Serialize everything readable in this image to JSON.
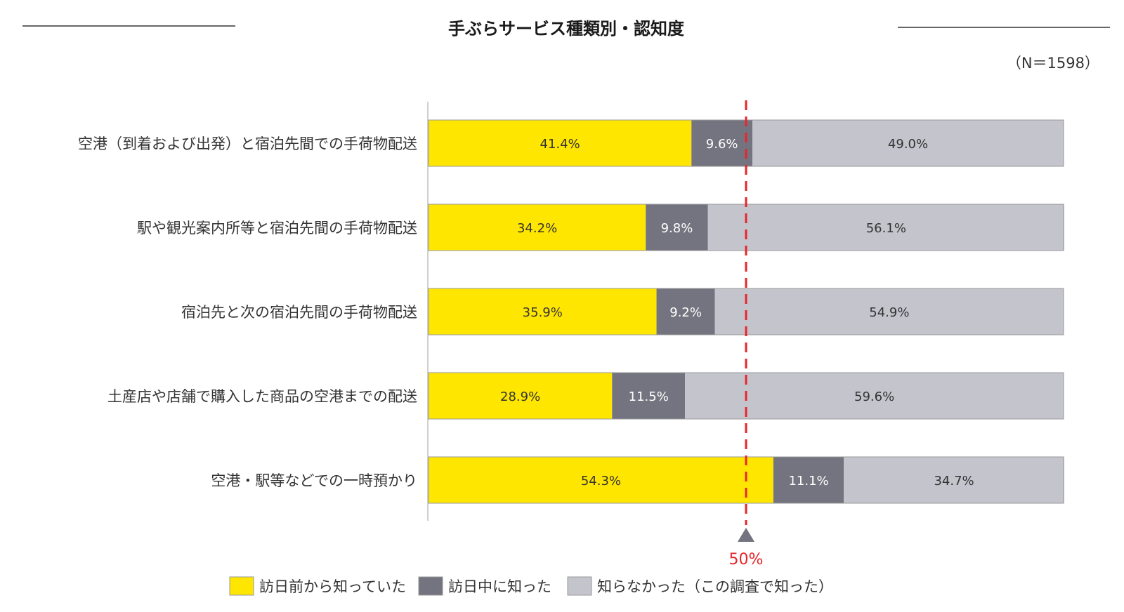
{
  "chart_data": {
    "type": "bar",
    "orientation": "horizontal",
    "stacked": true,
    "title": "手ぶらサービス種類別・認知度",
    "note": "（N＝1598）",
    "xlim": [
      0,
      100
    ],
    "categories": [
      "空港（到着および出発）と宿泊先間での手荷物配送",
      "駅や観光案内所等と宿泊先間の手荷物配送",
      "宿泊先と次の宿泊先間の手荷物配送",
      "土産店や店舗で購入した商品の空港までの配送",
      "空港・駅等などでの一時預かり"
    ],
    "series": [
      {
        "name": "訪日前から知っていた",
        "color": "#FFE600",
        "label_color": "#333333",
        "values": [
          41.4,
          34.2,
          35.9,
          28.9,
          54.3
        ],
        "labels": [
          "41.4%",
          "34.2%",
          "35.9%",
          "28.9%",
          "54.3%"
        ]
      },
      {
        "name": "訪日中に知った",
        "color": "#747480",
        "label_color": "#ffffff",
        "values": [
          9.6,
          9.8,
          9.2,
          11.5,
          11.1
        ],
        "labels": [
          "9.6%",
          "9.8%",
          "9.2%",
          "11.5%",
          "11.1%"
        ]
      },
      {
        "name": "知らなかった（この調査で知った）",
        "color": "#C4C4CD",
        "label_color": "#333333",
        "values": [
          49.0,
          56.1,
          54.9,
          59.6,
          34.7
        ],
        "labels": [
          "49.0%",
          "56.1%",
          "54.9%",
          "59.6%",
          "34.7%"
        ]
      }
    ],
    "reference_line": {
      "value": 50,
      "label": "50%",
      "color": "#E8252A"
    },
    "legend_position": "bottom",
    "grid": false
  }
}
